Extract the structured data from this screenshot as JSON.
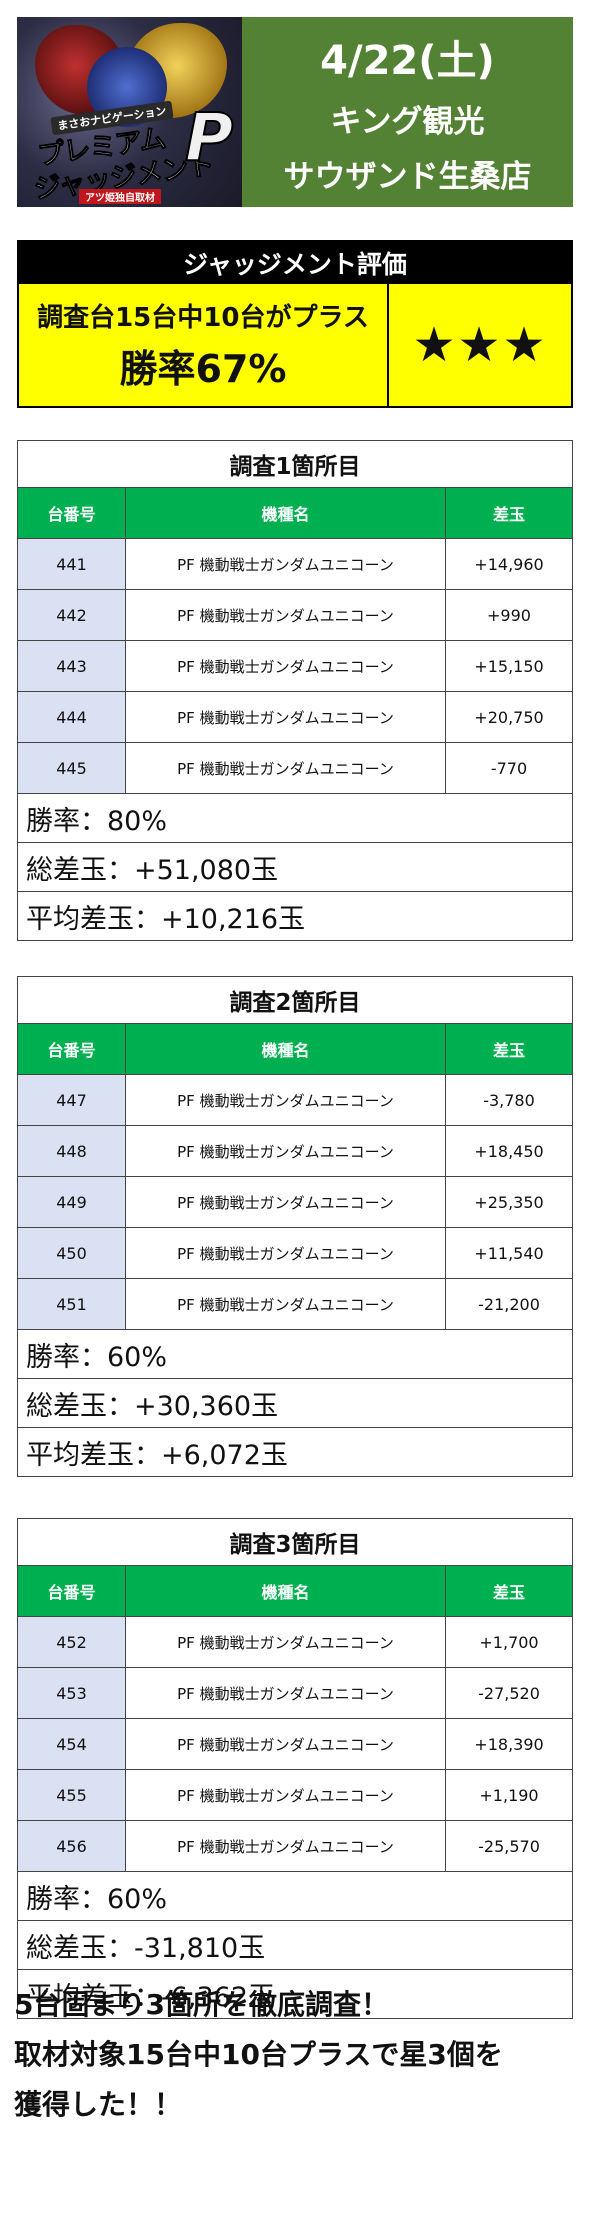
{
  "header": {
    "logo": {
      "small_text": "まさおナビゲーション",
      "title_line1": "プレミアム",
      "title_line2": "ジャッジメント",
      "big_letter": "P",
      "tag": "アツ姫独自取材"
    },
    "date": "4/22(土)",
    "store_line1": "キング観光",
    "store_line2": "サウザンド生桑店"
  },
  "judgement": {
    "title": "ジャッジメント評価",
    "summary": "調査台15台中10台がプラス",
    "win_rate": "勝率67%",
    "stars": "★★★"
  },
  "table_headers": {
    "machine_no": "台番号",
    "model": "機種名",
    "diff": "差玉"
  },
  "surveys": [
    {
      "title": "調査1箇所目",
      "rows": [
        {
          "no": "441",
          "model": "PF 機動戦士ガンダムユニコーン",
          "diff": "+14,960"
        },
        {
          "no": "442",
          "model": "PF 機動戦士ガンダムユニコーン",
          "diff": "+990"
        },
        {
          "no": "443",
          "model": "PF 機動戦士ガンダムユニコーン",
          "diff": "+15,150"
        },
        {
          "no": "444",
          "model": "PF 機動戦士ガンダムユニコーン",
          "diff": "+20,750"
        },
        {
          "no": "445",
          "model": "PF 機動戦士ガンダムユニコーン",
          "diff": "-770"
        }
      ],
      "win_rate": "勝率：80%",
      "total": "総差玉：+51,080玉",
      "average": "平均差玉：+10,216玉"
    },
    {
      "title": "調査2箇所目",
      "rows": [
        {
          "no": "447",
          "model": "PF 機動戦士ガンダムユニコーン",
          "diff": "-3,780"
        },
        {
          "no": "448",
          "model": "PF 機動戦士ガンダムユニコーン",
          "diff": "+18,450"
        },
        {
          "no": "449",
          "model": "PF 機動戦士ガンダムユニコーン",
          "diff": "+25,350"
        },
        {
          "no": "450",
          "model": "PF 機動戦士ガンダムユニコーン",
          "diff": "+11,540"
        },
        {
          "no": "451",
          "model": "PF 機動戦士ガンダムユニコーン",
          "diff": "-21,200"
        }
      ],
      "win_rate": "勝率：60%",
      "total": "総差玉：+30,360玉",
      "average": "平均差玉：+6,072玉"
    },
    {
      "title": "調査3箇所目",
      "rows": [
        {
          "no": "452",
          "model": "PF 機動戦士ガンダムユニコーン",
          "diff": "+1,700"
        },
        {
          "no": "453",
          "model": "PF 機動戦士ガンダムユニコーン",
          "diff": "-27,520"
        },
        {
          "no": "454",
          "model": "PF 機動戦士ガンダムユニコーン",
          "diff": "+18,390"
        },
        {
          "no": "455",
          "model": "PF 機動戦士ガンダムユニコーン",
          "diff": "+1,190"
        },
        {
          "no": "456",
          "model": "PF 機動戦士ガンダムユニコーン",
          "diff": "-25,570"
        }
      ],
      "win_rate": "勝率：60%",
      "total": "総差玉：-31,810玉",
      "average": "平均差玉：-6,362玉"
    }
  ],
  "footer": {
    "line1": "5台固まり3箇所を徹底調査！",
    "line2": "取材対象15台中10台プラスで星3個を",
    "line3": "獲得した！！"
  },
  "colors": {
    "header_bg": "#548235",
    "judge_bg": "#ffff00",
    "table_header_bg": "#00b050",
    "machine_cell_bg": "#d9e1f2"
  }
}
